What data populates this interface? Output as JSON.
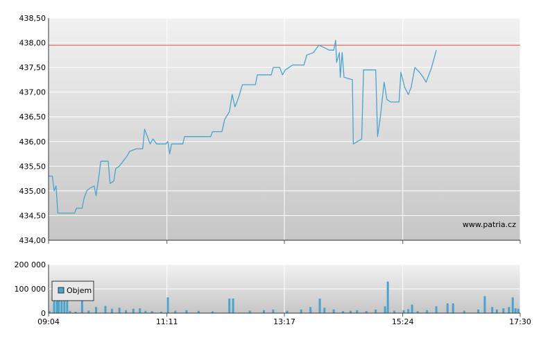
{
  "chart_data": [
    {
      "type": "line",
      "title": "",
      "xlabel": "",
      "ylabel": "",
      "ylim": [
        434.0,
        438.5
      ],
      "y_ticks": [
        "434,00",
        "434,50",
        "435,00",
        "435,50",
        "436,00",
        "436,50",
        "437,00",
        "437,50",
        "438,00",
        "438,50"
      ],
      "x_ticks": [
        "09:04",
        "11:11",
        "13:17",
        "15:24",
        "17:30"
      ],
      "x_range": [
        "09:04",
        "17:30"
      ],
      "reference_line": {
        "value": 437.95,
        "color": "#e05040"
      },
      "series": [
        {
          "color": "#4aa3cc",
          "points": [
            [
              "09:04",
              435.3
            ],
            [
              "09:08",
              435.3
            ],
            [
              "09:10",
              435.0
            ],
            [
              "09:12",
              435.1
            ],
            [
              "09:14",
              434.55
            ],
            [
              "09:32",
              434.55
            ],
            [
              "09:34",
              434.65
            ],
            [
              "09:40",
              434.65
            ],
            [
              "09:42",
              434.85
            ],
            [
              "09:45",
              435.0
            ],
            [
              "09:48",
              435.05
            ],
            [
              "09:53",
              435.1
            ],
            [
              "09:55",
              434.9
            ],
            [
              "09:58",
              435.3
            ],
            [
              "10:00",
              435.6
            ],
            [
              "10:08",
              435.6
            ],
            [
              "10:10",
              435.15
            ],
            [
              "10:14",
              435.2
            ],
            [
              "10:16",
              435.45
            ],
            [
              "10:20",
              435.5
            ],
            [
              "10:24",
              435.6
            ],
            [
              "10:28",
              435.7
            ],
            [
              "10:31",
              435.8
            ],
            [
              "10:38",
              435.85
            ],
            [
              "10:45",
              435.85
            ],
            [
              "10:47",
              436.25
            ],
            [
              "10:50",
              436.1
            ],
            [
              "10:53",
              435.95
            ],
            [
              "10:56",
              436.05
            ],
            [
              "11:00",
              435.95
            ],
            [
              "11:10",
              435.95
            ],
            [
              "11:12",
              436.0
            ],
            [
              "11:14",
              435.75
            ],
            [
              "11:16",
              435.95
            ],
            [
              "11:28",
              435.95
            ],
            [
              "11:30",
              436.1
            ],
            [
              "11:58",
              436.1
            ],
            [
              "12:00",
              436.2
            ],
            [
              "12:10",
              436.2
            ],
            [
              "12:13",
              436.45
            ],
            [
              "12:18",
              436.6
            ],
            [
              "12:21",
              436.95
            ],
            [
              "12:24",
              436.7
            ],
            [
              "12:28",
              436.9
            ],
            [
              "12:32",
              437.15
            ],
            [
              "12:46",
              437.15
            ],
            [
              "12:48",
              437.35
            ],
            [
              "13:03",
              437.35
            ],
            [
              "13:05",
              437.5
            ],
            [
              "13:12",
              437.5
            ],
            [
              "13:15",
              437.35
            ],
            [
              "13:18",
              437.45
            ],
            [
              "13:26",
              437.55
            ],
            [
              "13:38",
              437.55
            ],
            [
              "13:41",
              437.75
            ],
            [
              "13:48",
              437.8
            ],
            [
              "13:54",
              437.95
            ],
            [
              "14:00",
              437.9
            ],
            [
              "14:05",
              437.85
            ],
            [
              "14:10",
              437.85
            ],
            [
              "14:12",
              438.05
            ],
            [
              "14:13",
              437.6
            ],
            [
              "14:16",
              437.8
            ],
            [
              "14:17",
              437.3
            ],
            [
              "14:19",
              437.8
            ],
            [
              "14:21",
              437.3
            ],
            [
              "14:30",
              437.25
            ],
            [
              "14:31",
              435.95
            ],
            [
              "14:40",
              436.05
            ],
            [
              "14:42",
              437.45
            ],
            [
              "14:55",
              437.45
            ],
            [
              "14:57",
              436.1
            ],
            [
              "15:00",
              436.5
            ],
            [
              "15:04",
              437.2
            ],
            [
              "15:07",
              436.85
            ],
            [
              "15:11",
              436.8
            ],
            [
              "15:20",
              436.8
            ],
            [
              "15:22",
              437.4
            ],
            [
              "15:26",
              437.1
            ],
            [
              "15:30",
              436.95
            ],
            [
              "15:33",
              437.1
            ],
            [
              "15:37",
              437.5
            ],
            [
              "15:42",
              437.4
            ],
            [
              "15:46",
              437.3
            ],
            [
              "15:49",
              437.2
            ],
            [
              "15:52",
              437.35
            ],
            [
              "15:55",
              437.5
            ],
            [
              "16:00",
              437.85
            ]
          ]
        }
      ],
      "grid": true,
      "watermark": "www.patria.cz"
    },
    {
      "type": "bar",
      "title": "",
      "xlabel": "",
      "ylabel": "",
      "ylim": [
        0,
        200000
      ],
      "y_ticks": [
        "0",
        "100 000",
        "200 000"
      ],
      "x_ticks": [
        "09:04",
        "11:11",
        "13:17",
        "15:24",
        "17:30"
      ],
      "x_range": [
        "09:04",
        "17:30"
      ],
      "legend": {
        "label": "Objem",
        "position": "top-left"
      },
      "series": [
        {
          "name": "Objem",
          "color": "#4aa3cc",
          "bars": [
            [
              "09:05",
              8000
            ],
            [
              "09:10",
              90000
            ],
            [
              "09:13",
              85000
            ],
            [
              "09:15",
              90000
            ],
            [
              "09:18",
              88000
            ],
            [
              "09:21",
              82000
            ],
            [
              "09:24",
              84000
            ],
            [
              "09:27",
              9000
            ],
            [
              "09:33",
              6000
            ],
            [
              "09:40",
              85000
            ],
            [
              "09:47",
              10000
            ],
            [
              "09:55",
              25000
            ],
            [
              "10:05",
              30000
            ],
            [
              "10:12",
              18000
            ],
            [
              "10:20",
              22000
            ],
            [
              "10:27",
              12000
            ],
            [
              "10:35",
              18000
            ],
            [
              "10:42",
              20000
            ],
            [
              "10:48",
              9000
            ],
            [
              "10:55",
              8000
            ],
            [
              "11:05",
              6000
            ],
            [
              "11:12",
              65000
            ],
            [
              "11:20",
              10000
            ],
            [
              "11:32",
              12000
            ],
            [
              "11:45",
              9000
            ],
            [
              "12:00",
              7000
            ],
            [
              "12:18",
              60000
            ],
            [
              "12:22",
              60000
            ],
            [
              "12:40",
              10000
            ],
            [
              "12:55",
              12000
            ],
            [
              "13:05",
              15000
            ],
            [
              "13:20",
              10000
            ],
            [
              "13:35",
              15000
            ],
            [
              "13:45",
              25000
            ],
            [
              "13:55",
              60000
            ],
            [
              "14:00",
              22000
            ],
            [
              "14:10",
              15000
            ],
            [
              "14:20",
              8000
            ],
            [
              "14:28",
              10000
            ],
            [
              "14:35",
              12000
            ],
            [
              "14:45",
              9000
            ],
            [
              "14:55",
              15000
            ],
            [
              "15:05",
              28000
            ],
            [
              "15:08",
              130000
            ],
            [
              "15:15",
              10000
            ],
            [
              "15:25",
              12000
            ],
            [
              "15:30",
              16000
            ],
            [
              "15:34",
              35000
            ],
            [
              "15:40",
              8000
            ],
            [
              "15:50",
              12000
            ],
            [
              "16:00",
              28000
            ],
            [
              "16:12",
              40000
            ],
            [
              "16:18",
              40000
            ],
            [
              "16:30",
              10000
            ],
            [
              "16:45",
              15000
            ],
            [
              "16:52",
              70000
            ],
            [
              "17:00",
              25000
            ],
            [
              "17:05",
              15000
            ],
            [
              "17:12",
              20000
            ],
            [
              "17:18",
              25000
            ],
            [
              "17:22",
              65000
            ],
            [
              "17:25",
              20000
            ],
            [
              "17:28",
              18000
            ]
          ]
        }
      ],
      "grid": true
    }
  ]
}
